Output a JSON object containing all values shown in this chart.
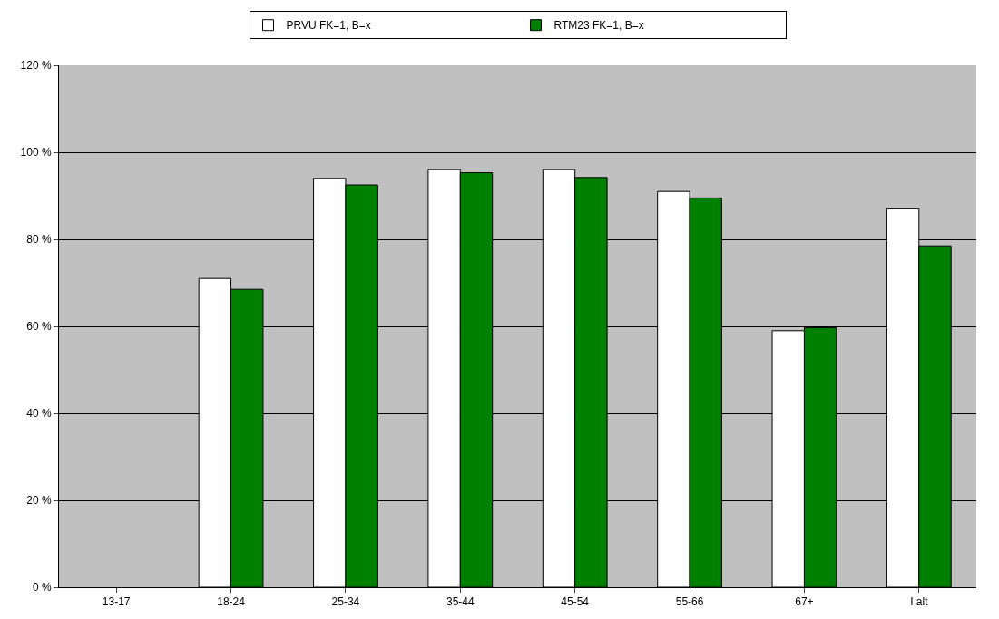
{
  "chart_data": {
    "type": "bar",
    "categories": [
      "13-17",
      "18-24",
      "25-34",
      "35-44",
      "45-54",
      "55-66",
      "67+",
      "I alt"
    ],
    "series": [
      {
        "name": "PRVU FK=1, B=x",
        "color": "#ffffff",
        "values": [
          null,
          71,
          94,
          96,
          96,
          91,
          59,
          87
        ]
      },
      {
        "name": "RTM23 FK=1, B=x",
        "color": "#008000",
        "values": [
          null,
          68.5,
          92.5,
          95.3,
          94.2,
          89.5,
          59.7,
          78.5
        ]
      }
    ],
    "ylim": [
      0,
      120
    ],
    "yticks": [
      {
        "value": 0,
        "label": "0 %"
      },
      {
        "value": 20,
        "label": "20 %"
      },
      {
        "value": 40,
        "label": "40 %"
      },
      {
        "value": 60,
        "label": "60 %"
      },
      {
        "value": 80,
        "label": "80 %"
      },
      {
        "value": 100,
        "label": "100 %"
      },
      {
        "value": 120,
        "label": "120 %"
      }
    ],
    "grid": "y",
    "legend": "top"
  }
}
